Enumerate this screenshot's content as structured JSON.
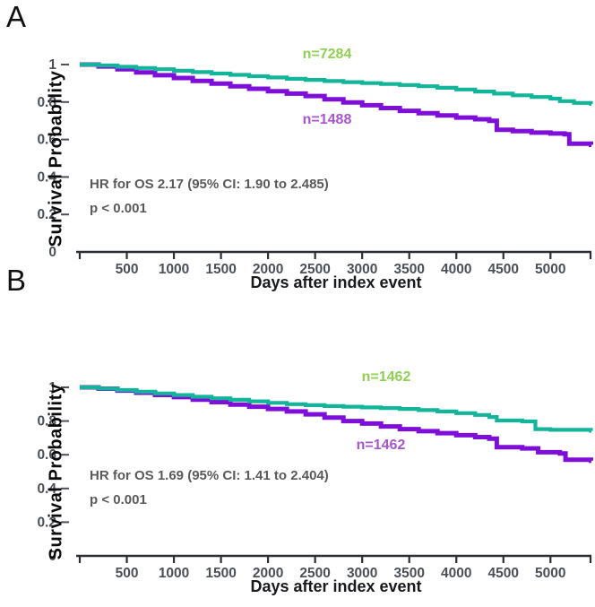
{
  "figure": {
    "panel_a_letter": "A",
    "panel_b_letter": "B"
  },
  "chart_data": [
    {
      "type": "line",
      "subtype": "kaplan-meier-step",
      "title": "A",
      "xlabel": "Days after index event",
      "ylabel": "Survival Probability",
      "xlim": [
        0,
        5430
      ],
      "ylim": [
        0,
        1
      ],
      "x_ticks": [
        500,
        1000,
        1500,
        2000,
        2500,
        3000,
        3500,
        4000,
        4500,
        5000
      ],
      "y_ticks": [
        0,
        0.2,
        0.4,
        0.6,
        0.8,
        1
      ],
      "y_tick_labels": [
        "0",
        "0.2",
        "0.4",
        "0.6",
        "0.8",
        "1"
      ],
      "grid": false,
      "legend_position": "inline-labels",
      "annotations": [
        "HR for OS 2.17 (95% CI: 1.90 to 2.485)",
        "p < 0.001"
      ],
      "series": [
        {
          "name": "n=7284",
          "color": "#12b49a",
          "label_color": "#8ed052",
          "points": [
            [
              0,
              1.0
            ],
            [
              200,
              0.995
            ],
            [
              400,
              0.988
            ],
            [
              600,
              0.982
            ],
            [
              800,
              0.975
            ],
            [
              1000,
              0.967
            ],
            [
              1200,
              0.96
            ],
            [
              1400,
              0.952
            ],
            [
              1600,
              0.945
            ],
            [
              1800,
              0.938
            ],
            [
              2000,
              0.931
            ],
            [
              2200,
              0.924
            ],
            [
              2400,
              0.918
            ],
            [
              2600,
              0.912
            ],
            [
              2800,
              0.906
            ],
            [
              3000,
              0.901
            ],
            [
              3200,
              0.896
            ],
            [
              3400,
              0.891
            ],
            [
              3600,
              0.884
            ],
            [
              3800,
              0.876
            ],
            [
              4000,
              0.867
            ],
            [
              4200,
              0.856
            ],
            [
              4400,
              0.845
            ],
            [
              4600,
              0.836
            ],
            [
              4800,
              0.827
            ],
            [
              5000,
              0.818
            ],
            [
              5100,
              0.805
            ],
            [
              5250,
              0.795
            ],
            [
              5430,
              0.79
            ]
          ]
        },
        {
          "name": "n=1488",
          "color": "#7e0fd9",
          "label_color": "#a855cf",
          "points": [
            [
              0,
              1.0
            ],
            [
              200,
              0.99
            ],
            [
              400,
              0.975
            ],
            [
              600,
              0.958
            ],
            [
              800,
              0.943
            ],
            [
              1000,
              0.928
            ],
            [
              1200,
              0.913
            ],
            [
              1400,
              0.898
            ],
            [
              1600,
              0.884
            ],
            [
              1800,
              0.871
            ],
            [
              2000,
              0.858
            ],
            [
              2200,
              0.845
            ],
            [
              2400,
              0.832
            ],
            [
              2600,
              0.815
            ],
            [
              2800,
              0.798
            ],
            [
              3000,
              0.783
            ],
            [
              3200,
              0.768
            ],
            [
              3400,
              0.753
            ],
            [
              3600,
              0.74
            ],
            [
              3800,
              0.728
            ],
            [
              4000,
              0.717
            ],
            [
              4200,
              0.708
            ],
            [
              4350,
              0.7
            ],
            [
              4430,
              0.652
            ],
            [
              4600,
              0.645
            ],
            [
              4800,
              0.637
            ],
            [
              5000,
              0.632
            ],
            [
              5150,
              0.628
            ],
            [
              5200,
              0.578
            ],
            [
              5430,
              0.572
            ]
          ]
        }
      ]
    },
    {
      "type": "line",
      "subtype": "kaplan-meier-step",
      "title": "B",
      "xlabel": "Days after index event",
      "ylabel": "Survival Probability",
      "xlim": [
        0,
        5430
      ],
      "ylim": [
        0,
        1
      ],
      "x_ticks": [
        500,
        1000,
        1500,
        2000,
        2500,
        3000,
        3500,
        4000,
        4500,
        5000
      ],
      "y_ticks": [
        0,
        0.2,
        0.4,
        0.6,
        0.8,
        1
      ],
      "y_tick_labels": [
        "0",
        "0.2",
        "0.4",
        "0.6",
        "0.8",
        "1"
      ],
      "grid": false,
      "legend_position": "inline-labels",
      "annotations": [
        "HR for OS 1.69 (95% CI: 1.41 to 2.404)",
        "p < 0.001"
      ],
      "series": [
        {
          "name": "n=1462",
          "color": "#12b49a",
          "label_color": "#8ed052",
          "points": [
            [
              0,
              1.0
            ],
            [
              200,
              0.993
            ],
            [
              400,
              0.984
            ],
            [
              600,
              0.974
            ],
            [
              800,
              0.964
            ],
            [
              1000,
              0.954
            ],
            [
              1200,
              0.944
            ],
            [
              1400,
              0.935
            ],
            [
              1600,
              0.926
            ],
            [
              1800,
              0.917
            ],
            [
              2000,
              0.908
            ],
            [
              2200,
              0.9
            ],
            [
              2400,
              0.894
            ],
            [
              2600,
              0.889
            ],
            [
              2800,
              0.885
            ],
            [
              3000,
              0.881
            ],
            [
              3200,
              0.877
            ],
            [
              3400,
              0.872
            ],
            [
              3600,
              0.865
            ],
            [
              3800,
              0.857
            ],
            [
              4000,
              0.847
            ],
            [
              4200,
              0.836
            ],
            [
              4350,
              0.824
            ],
            [
              4430,
              0.803
            ],
            [
              4700,
              0.798
            ],
            [
              4840,
              0.752
            ],
            [
              5000,
              0.748
            ],
            [
              5430,
              0.742
            ]
          ]
        },
        {
          "name": "n=1462",
          "color": "#7e0fd9",
          "label_color": "#a855cf",
          "points": [
            [
              0,
              1.0
            ],
            [
              200,
              0.992
            ],
            [
              400,
              0.981
            ],
            [
              600,
              0.968
            ],
            [
              800,
              0.955
            ],
            [
              1000,
              0.942
            ],
            [
              1200,
              0.927
            ],
            [
              1400,
              0.912
            ],
            [
              1600,
              0.898
            ],
            [
              1800,
              0.885
            ],
            [
              2000,
              0.872
            ],
            [
              2200,
              0.857
            ],
            [
              2400,
              0.84
            ],
            [
              2600,
              0.82
            ],
            [
              2800,
              0.8
            ],
            [
              3000,
              0.785
            ],
            [
              3200,
              0.768
            ],
            [
              3400,
              0.752
            ],
            [
              3600,
              0.74
            ],
            [
              3800,
              0.728
            ],
            [
              4000,
              0.716
            ],
            [
              4200,
              0.705
            ],
            [
              4350,
              0.695
            ],
            [
              4430,
              0.645
            ],
            [
              4700,
              0.638
            ],
            [
              4870,
              0.615
            ],
            [
              5100,
              0.608
            ],
            [
              5160,
              0.57
            ],
            [
              5430,
              0.565
            ]
          ]
        }
      ]
    }
  ],
  "colors": {
    "curve_teal": "#12b49a",
    "curve_purple": "#7e0fd9",
    "label_green": "#8ed052",
    "label_purple": "#a855cf",
    "annotation_gray": "#595959",
    "tick_gray": "#4b5058",
    "axis_dark": "#2b2f35"
  }
}
